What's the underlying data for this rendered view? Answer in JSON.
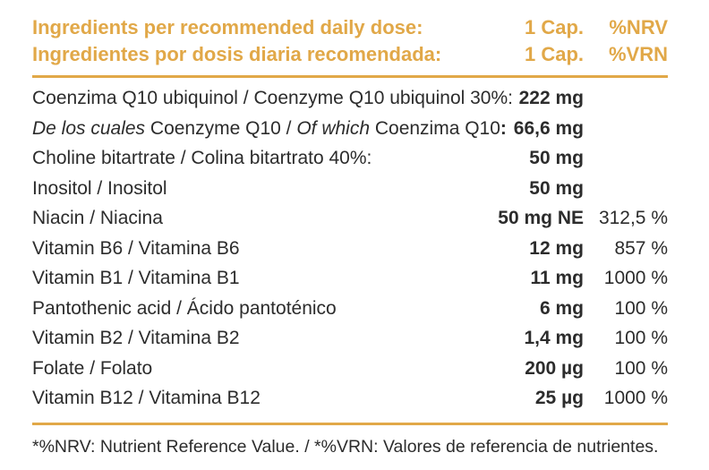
{
  "colors": {
    "accent": "#E1A848",
    "text": "#2C2C2C"
  },
  "header": {
    "rows": [
      {
        "label": "Ingredients per recommended daily dose:",
        "dose": "1 Cap.",
        "ref": "%NRV"
      },
      {
        "label": "Ingredientes por dosis diaria recomendada:",
        "dose": "1 Cap.",
        "ref": "%VRN"
      }
    ]
  },
  "table": {
    "rows": [
      {
        "label_segments": [
          {
            "text": "Coenzima Q10 ubiquinol / Coenzyme Q10 ubiquinol 30%:",
            "style": "normal"
          }
        ],
        "amount": "222 mg",
        "nrv": ""
      },
      {
        "label_segments": [
          {
            "text": "De los cuales ",
            "style": "italic"
          },
          {
            "text": "Coenzyme Q10 / ",
            "style": "normal"
          },
          {
            "text": "Of which ",
            "style": "italic"
          },
          {
            "text": "Coenzima Q10",
            "style": "normal"
          },
          {
            "text": ":",
            "style": "bold"
          }
        ],
        "amount": "66,6 mg",
        "nrv": ""
      },
      {
        "label_segments": [
          {
            "text": "Choline bitartrate / Colina bitartrato 40%:",
            "style": "normal"
          }
        ],
        "amount": "50 mg",
        "nrv": ""
      },
      {
        "label_segments": [
          {
            "text": "Inositol / Inositol",
            "style": "normal"
          }
        ],
        "amount": "50 mg",
        "nrv": ""
      },
      {
        "label_segments": [
          {
            "text": "Niacin / Niacina",
            "style": "normal"
          }
        ],
        "amount": "50 mg NE",
        "nrv": "312,5 %"
      },
      {
        "label_segments": [
          {
            "text": "Vitamin B6 / Vitamina B6",
            "style": "normal"
          }
        ],
        "amount": "12 mg",
        "nrv": "857 %"
      },
      {
        "label_segments": [
          {
            "text": "Vitamin B1 / Vitamina B1",
            "style": "normal"
          }
        ],
        "amount": "11 mg",
        "nrv": "1000 %"
      },
      {
        "label_segments": [
          {
            "text": "Pantothenic acid / Ácido pantoténico",
            "style": "normal"
          }
        ],
        "amount": "6 mg",
        "nrv": "100 %"
      },
      {
        "label_segments": [
          {
            "text": "Vitamin B2 / Vitamina B2",
            "style": "normal"
          }
        ],
        "amount": "1,4 mg",
        "nrv": "100 %"
      },
      {
        "label_segments": [
          {
            "text": "Folate / Folato",
            "style": "normal"
          }
        ],
        "amount": "200 µg",
        "nrv": "100 %"
      },
      {
        "label_segments": [
          {
            "text": "Vitamin B12 / Vitamina B12",
            "style": "normal"
          }
        ],
        "amount": "25 µg",
        "nrv": "1000 %"
      }
    ]
  },
  "footer": {
    "note": "*%NRV: Nutrient Reference Value. / *%VRN: Valores de referencia de nutrientes."
  }
}
